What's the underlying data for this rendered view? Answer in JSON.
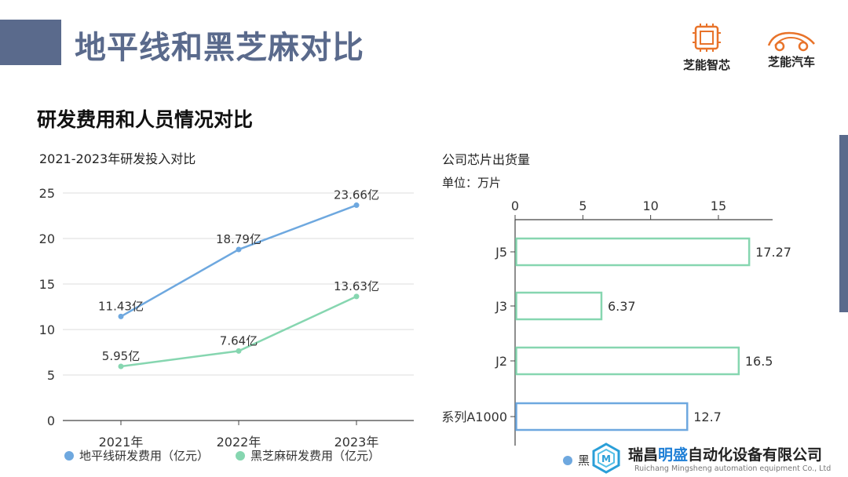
{
  "header": {
    "title": "地平线和黑芝麻对比",
    "logo_left_caption": "芝能智芯",
    "logo_right_caption": "芝能汽车"
  },
  "section": {
    "subtitle": "研发费用和人员情况对比"
  },
  "colors": {
    "accent": "#5a6a8c",
    "horizon": "#6ea8df",
    "black_sesame": "#86d6b0"
  },
  "chart_data": [
    {
      "type": "line",
      "title": "2021-2023年研发投入对比",
      "x": [
        "2021年",
        "2022年",
        "2023年"
      ],
      "ylim": [
        0,
        25
      ],
      "yticks": [
        "0",
        "5",
        "10",
        "15",
        "20",
        "25"
      ],
      "grid": true,
      "legend_position": "bottom",
      "series": [
        {
          "name": "地平线研发费用（亿元）",
          "color": "#6ea8df",
          "values": [
            11.43,
            18.79,
            23.66
          ],
          "labels": [
            "11.43亿",
            "18.79亿",
            "23.66亿"
          ]
        },
        {
          "name": "黑芝麻研发费用（亿元）",
          "color": "#86d6b0",
          "values": [
            5.95,
            7.64,
            13.63
          ],
          "labels": [
            "5.95亿",
            "7.64亿",
            "13.63亿"
          ]
        }
      ]
    },
    {
      "type": "bar",
      "orientation": "horizontal",
      "title": "公司芯片出货量",
      "unit": "单位：万片",
      "categories": [
        "J5",
        "J3",
        "J2",
        "系列A1000"
      ],
      "values": [
        17.27,
        6.37,
        16.5,
        12.7
      ],
      "value_labels": [
        "17.27",
        "6.37",
        "16.5",
        "12.7"
      ],
      "bar_colors": [
        "#86d6b0",
        "#86d6b0",
        "#86d6b0",
        "#6ea8df"
      ],
      "xlim": [
        0,
        19
      ],
      "xticks": [
        0,
        5,
        10,
        15
      ],
      "legend_position": "bottom",
      "legend_visible": "黑"
    }
  ],
  "watermark": {
    "name_pre": "瑞昌",
    "name_highlight": "明盛",
    "name_post": "自动化设备有限公司",
    "subtitle": "Ruichang Mingsheng automation equipment Co., Ltd"
  }
}
